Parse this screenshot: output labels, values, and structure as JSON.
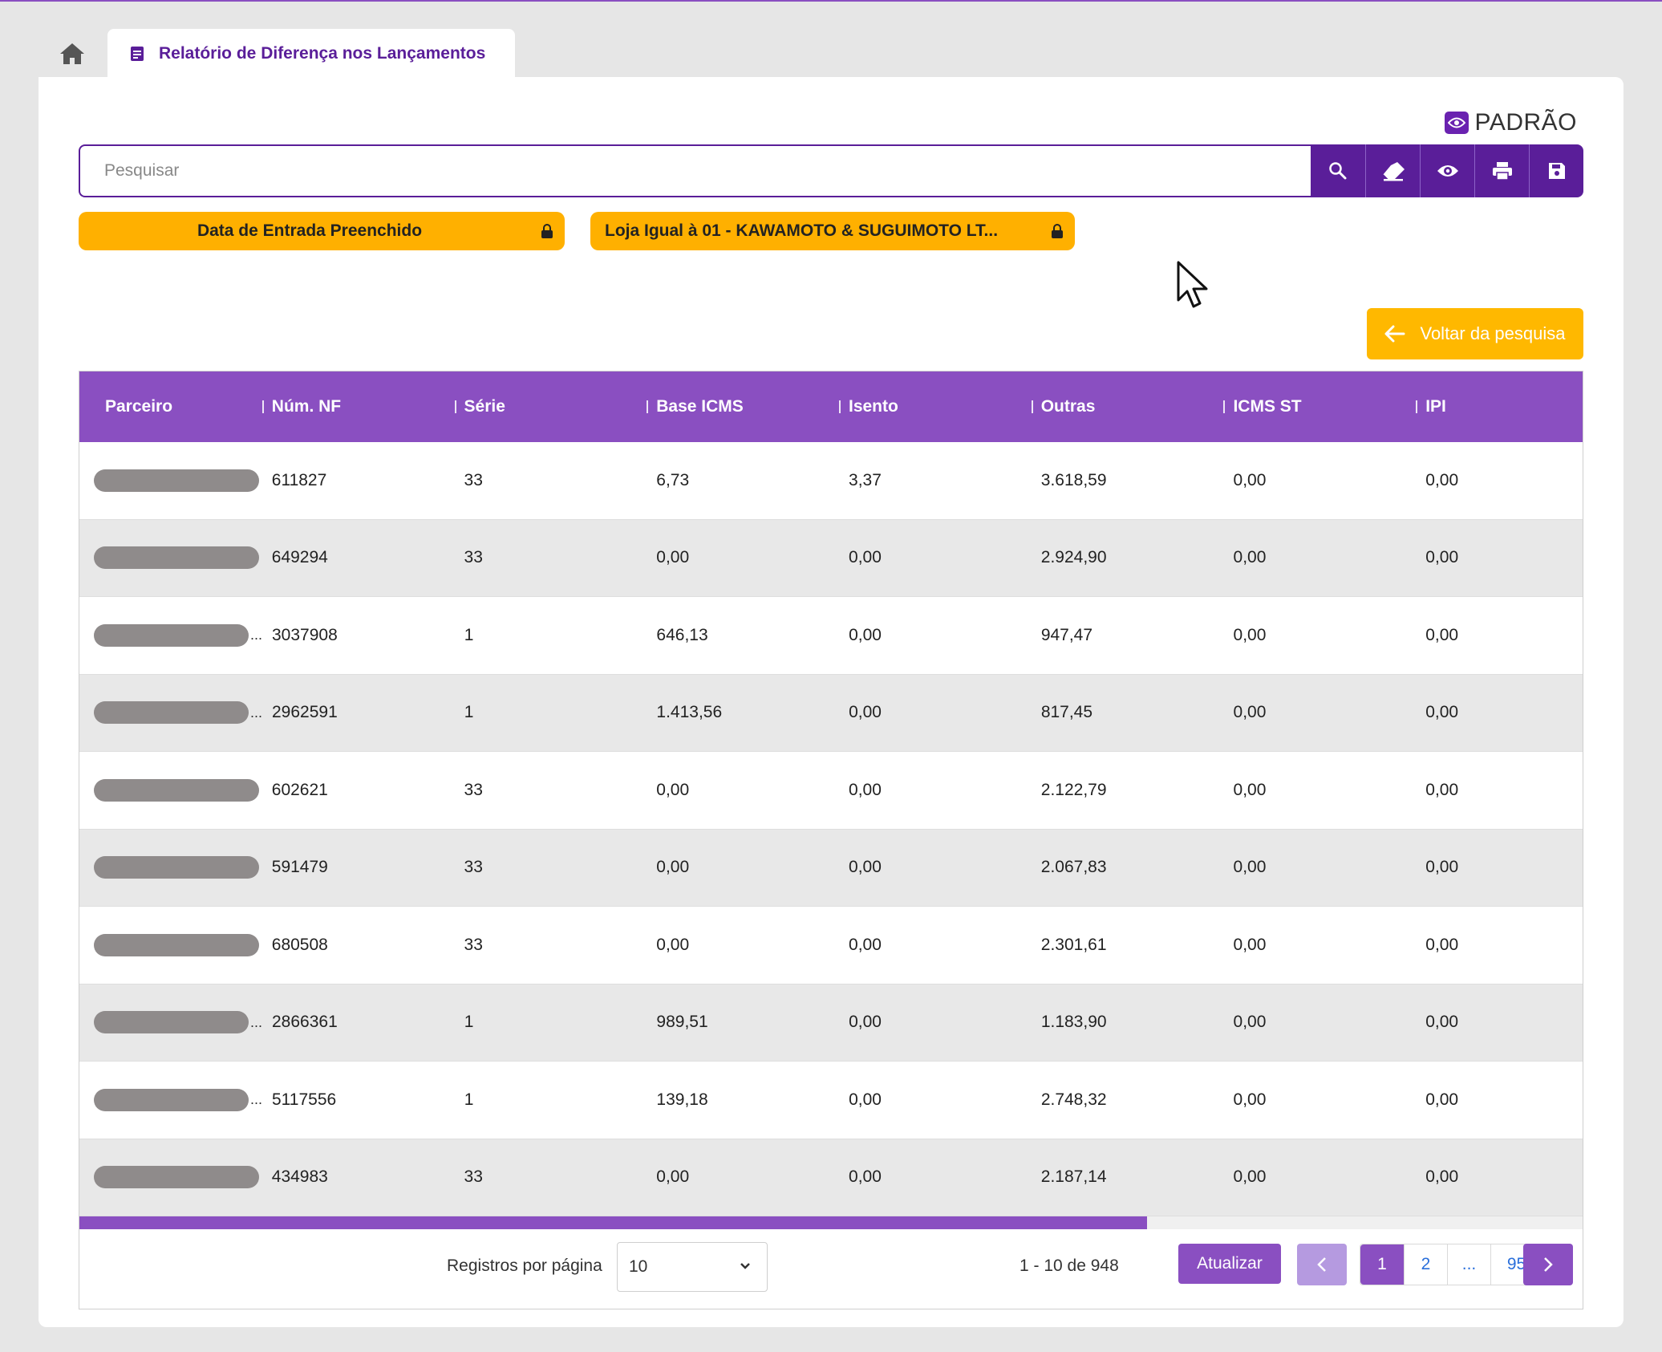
{
  "tabs": {
    "home_icon": "home-icon",
    "report_label": "Relatório de Diferença nos Lançamentos"
  },
  "preset": {
    "label": "PADRÃO"
  },
  "search": {
    "placeholder": "Pesquisar",
    "value": ""
  },
  "toolbar": {
    "buttons": [
      "search-icon",
      "eraser-icon",
      "eye-icon",
      "print-icon",
      "save-icon"
    ]
  },
  "filters": [
    {
      "label": "Data de Entrada Preenchido"
    },
    {
      "label": "Loja Igual à 01 - KAWAMOTO & SUGUIMOTO LT..."
    }
  ],
  "back_button": {
    "label": "Voltar da pesquisa"
  },
  "table": {
    "columns": [
      "Parceiro",
      "Núm. NF",
      "Série",
      "Base ICMS",
      "Isento",
      "Outras",
      "ICMS ST",
      "IPI"
    ],
    "rows": [
      {
        "truncated": false,
        "nf": "611827",
        "serie": "33",
        "base_icms": "6,73",
        "isento": "3,37",
        "outras": "3.618,59",
        "icms_st": "0,00",
        "ipi": "0,00"
      },
      {
        "truncated": false,
        "nf": "649294",
        "serie": "33",
        "base_icms": "0,00",
        "isento": "0,00",
        "outras": "2.924,90",
        "icms_st": "0,00",
        "ipi": "0,00"
      },
      {
        "truncated": true,
        "nf": "3037908",
        "serie": "1",
        "base_icms": "646,13",
        "isento": "0,00",
        "outras": "947,47",
        "icms_st": "0,00",
        "ipi": "0,00"
      },
      {
        "truncated": true,
        "nf": "2962591",
        "serie": "1",
        "base_icms": "1.413,56",
        "isento": "0,00",
        "outras": "817,45",
        "icms_st": "0,00",
        "ipi": "0,00"
      },
      {
        "truncated": false,
        "nf": "602621",
        "serie": "33",
        "base_icms": "0,00",
        "isento": "0,00",
        "outras": "2.122,79",
        "icms_st": "0,00",
        "ipi": "0,00"
      },
      {
        "truncated": false,
        "nf": "591479",
        "serie": "33",
        "base_icms": "0,00",
        "isento": "0,00",
        "outras": "2.067,83",
        "icms_st": "0,00",
        "ipi": "0,00"
      },
      {
        "truncated": false,
        "nf": "680508",
        "serie": "33",
        "base_icms": "0,00",
        "isento": "0,00",
        "outras": "2.301,61",
        "icms_st": "0,00",
        "ipi": "0,00"
      },
      {
        "truncated": true,
        "nf": "2866361",
        "serie": "1",
        "base_icms": "989,51",
        "isento": "0,00",
        "outras": "1.183,90",
        "icms_st": "0,00",
        "ipi": "0,00"
      },
      {
        "truncated": true,
        "nf": "5117556",
        "serie": "1",
        "base_icms": "139,18",
        "isento": "0,00",
        "outras": "2.748,32",
        "icms_st": "0,00",
        "ipi": "0,00"
      },
      {
        "truncated": false,
        "nf": "434983",
        "serie": "33",
        "base_icms": "0,00",
        "isento": "0,00",
        "outras": "2.187,14",
        "icms_st": "0,00",
        "ipi": "0,00"
      }
    ],
    "ellipsis": "...",
    "scroll_fraction": 0.71
  },
  "pagination": {
    "rows_per_page_label": "Registros por página",
    "rows_per_page_value": "10",
    "range_text": "1 - 10 de 948",
    "refresh_label": "Atualizar",
    "pages": [
      "1",
      "2",
      "...",
      "95"
    ],
    "current_page": "1"
  },
  "colors": {
    "primary": "#5a1e99",
    "header": "#8a4fc1",
    "filter_chip": "#ffb000",
    "back_button": "#ffb800"
  }
}
